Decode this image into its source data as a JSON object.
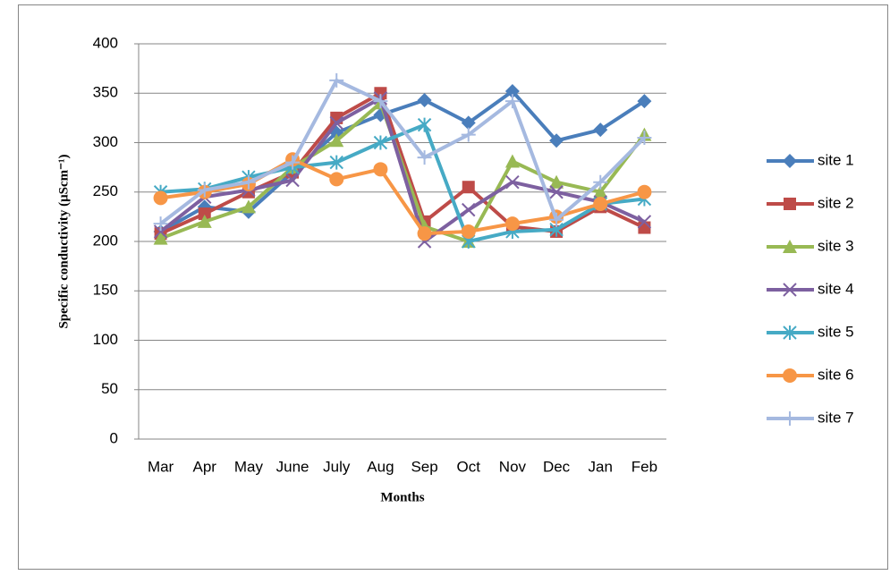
{
  "chart_data": {
    "type": "line",
    "y_label": "Specific conductivity (μScm⁻¹)",
    "x_label": "Months",
    "categories": [
      "Mar",
      "Apr",
      "May",
      "June",
      "July",
      "Aug",
      "Sep",
      "Oct",
      "Nov",
      "Dec",
      "Jan",
      "Feb"
    ],
    "ylim": [
      0,
      400
    ],
    "yticks": [
      0,
      50,
      100,
      150,
      200,
      250,
      300,
      350,
      400
    ],
    "grid": true,
    "legend": "right",
    "series": [
      {
        "name": "site 1",
        "color": "#4a7ebb",
        "marker": "diamond",
        "values": [
          210,
          235,
          230,
          270,
          310,
          328,
          343,
          320,
          352,
          302,
          313,
          342
        ]
      },
      {
        "name": "site 2",
        "color": "#be4b48",
        "marker": "square",
        "values": [
          208,
          228,
          250,
          270,
          325,
          350,
          220,
          255,
          215,
          210,
          235,
          214
        ]
      },
      {
        "name": "site 3",
        "color": "#98b954",
        "marker": "triangle",
        "values": [
          203,
          220,
          235,
          275,
          302,
          340,
          215,
          200,
          281,
          260,
          250,
          308
        ]
      },
      {
        "name": "site 4",
        "color": "#7d60a0",
        "marker": "x",
        "values": [
          210,
          245,
          252,
          262,
          320,
          345,
          200,
          232,
          260,
          250,
          240,
          220
        ]
      },
      {
        "name": "site 5",
        "color": "#46aac5",
        "marker": "star",
        "values": [
          250,
          253,
          265,
          275,
          280,
          300,
          318,
          200,
          210,
          212,
          238,
          243
        ]
      },
      {
        "name": "site 6",
        "color": "#f79646",
        "marker": "circle",
        "values": [
          244,
          250,
          258,
          283,
          263,
          273,
          208,
          210,
          218,
          225,
          238,
          250
        ]
      },
      {
        "name": "site 7",
        "color": "#a5b9e0",
        "marker": "plus",
        "values": [
          218,
          252,
          260,
          280,
          363,
          342,
          285,
          308,
          342,
          222,
          260,
          305
        ]
      }
    ]
  }
}
